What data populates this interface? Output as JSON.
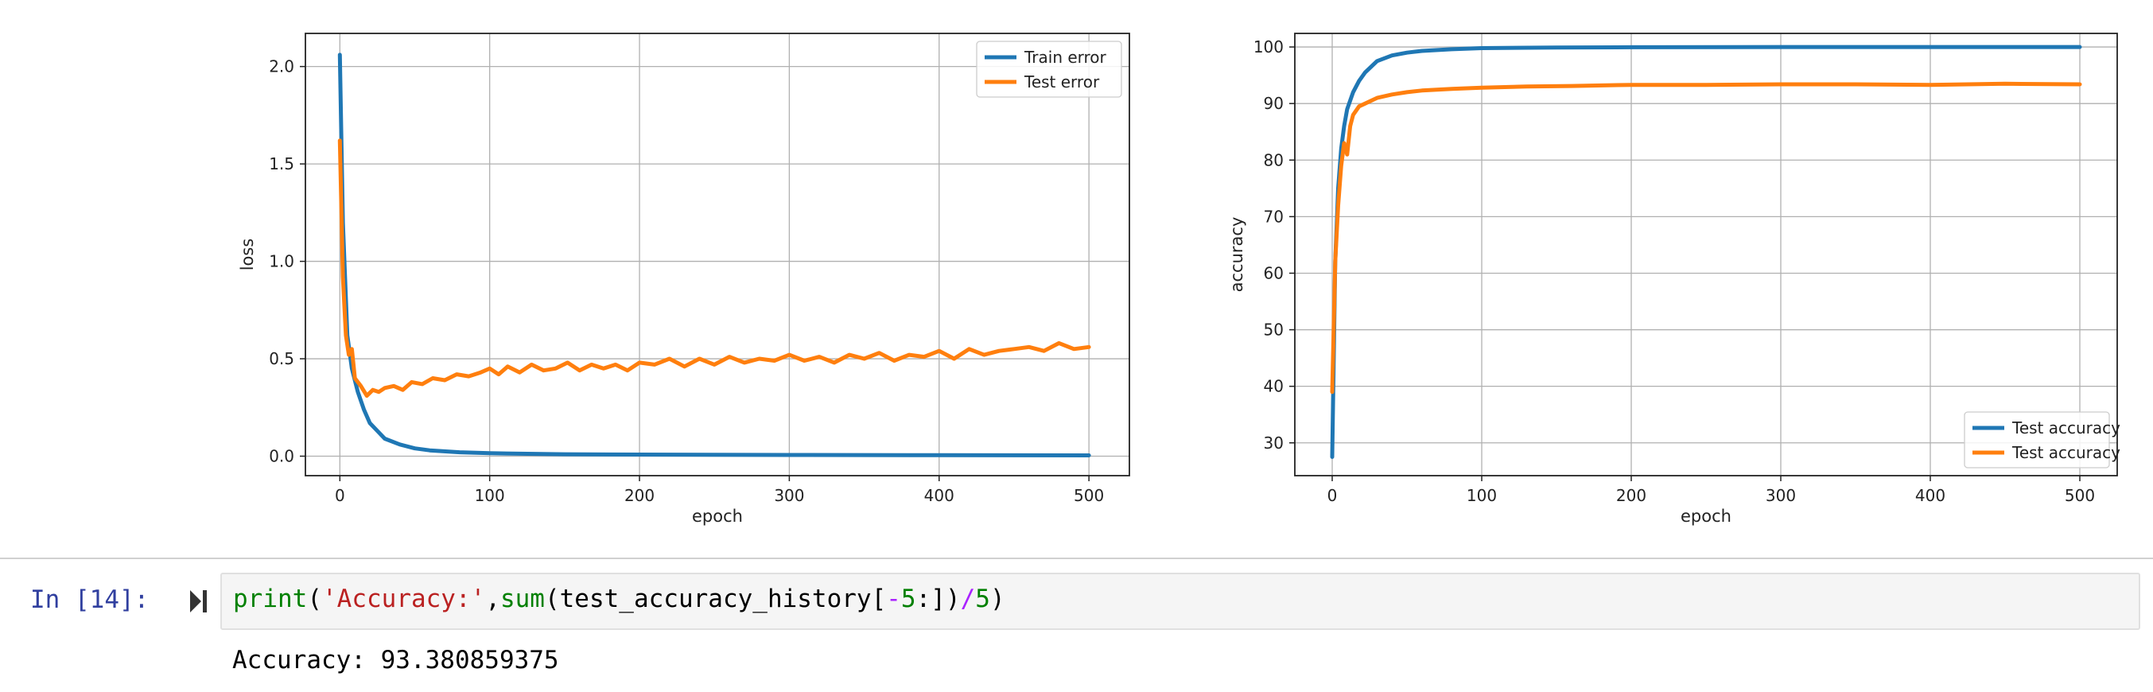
{
  "colors": {
    "series_blue": "#1f77b4",
    "series_orange": "#ff7f0e",
    "grid": "#b0b0b0",
    "prompt": "#303f9f"
  },
  "chart_data": [
    {
      "type": "line",
      "xlabel": "epoch",
      "ylabel": "loss",
      "xlim": [
        -23,
        527
      ],
      "ylim": [
        -0.1,
        2.17
      ],
      "xticks": [
        0,
        100,
        200,
        300,
        400,
        500
      ],
      "yticks": [
        0.0,
        0.5,
        1.0,
        1.5,
        2.0
      ],
      "xtick_labels": [
        "0",
        "100",
        "200",
        "300",
        "400",
        "500"
      ],
      "ytick_labels": [
        "0.0",
        "0.5",
        "1.0",
        "1.5",
        "2.0"
      ],
      "grid": true,
      "legend": "top-right",
      "series": [
        {
          "name": "Train error",
          "color": "#1f77b4",
          "x": [
            0,
            2,
            5,
            8,
            12,
            16,
            20,
            25,
            30,
            40,
            50,
            60,
            80,
            100,
            150,
            200,
            300,
            400,
            500
          ],
          "values": [
            2.06,
            1.2,
            0.62,
            0.45,
            0.33,
            0.24,
            0.17,
            0.13,
            0.09,
            0.06,
            0.04,
            0.03,
            0.02,
            0.015,
            0.01,
            0.008,
            0.006,
            0.005,
            0.004
          ]
        },
        {
          "name": "Test error",
          "color": "#ff7f0e",
          "x": [
            0,
            2,
            4,
            6,
            8,
            10,
            14,
            18,
            22,
            26,
            30,
            36,
            42,
            48,
            55,
            62,
            70,
            78,
            86,
            94,
            100,
            106,
            112,
            120,
            128,
            136,
            144,
            152,
            160,
            168,
            176,
            184,
            192,
            200,
            210,
            220,
            230,
            240,
            250,
            260,
            270,
            280,
            290,
            300,
            310,
            320,
            330,
            340,
            350,
            360,
            370,
            380,
            390,
            400,
            410,
            420,
            430,
            440,
            450,
            460,
            470,
            480,
            490,
            500
          ],
          "values": [
            1.62,
            0.92,
            0.62,
            0.52,
            0.55,
            0.4,
            0.36,
            0.31,
            0.34,
            0.33,
            0.35,
            0.36,
            0.34,
            0.38,
            0.37,
            0.4,
            0.39,
            0.42,
            0.41,
            0.43,
            0.45,
            0.42,
            0.46,
            0.43,
            0.47,
            0.44,
            0.45,
            0.48,
            0.44,
            0.47,
            0.45,
            0.47,
            0.44,
            0.48,
            0.47,
            0.5,
            0.46,
            0.5,
            0.47,
            0.51,
            0.48,
            0.5,
            0.49,
            0.52,
            0.49,
            0.51,
            0.48,
            0.52,
            0.5,
            0.53,
            0.49,
            0.52,
            0.51,
            0.54,
            0.5,
            0.55,
            0.52,
            0.54,
            0.55,
            0.56,
            0.54,
            0.58,
            0.55,
            0.56
          ]
        }
      ]
    },
    {
      "type": "line",
      "xlabel": "epoch",
      "ylabel": "accuracy",
      "xlim": [
        -25,
        525
      ],
      "ylim": [
        24.2,
        102.4
      ],
      "xticks": [
        0,
        100,
        200,
        300,
        400,
        500
      ],
      "yticks": [
        30,
        40,
        50,
        60,
        70,
        80,
        90,
        100
      ],
      "xtick_labels": [
        "0",
        "100",
        "200",
        "300",
        "400",
        "500"
      ],
      "ytick_labels": [
        "30",
        "40",
        "50",
        "60",
        "70",
        "80",
        "90",
        "100"
      ],
      "grid": true,
      "legend": "bottom-right",
      "series": [
        {
          "name": "Test accuracy",
          "color": "#1f77b4",
          "x": [
            0,
            2,
            4,
            6,
            8,
            10,
            14,
            18,
            22,
            26,
            30,
            40,
            50,
            60,
            80,
            100,
            150,
            200,
            300,
            400,
            500
          ],
          "values": [
            27.5,
            62,
            75,
            82,
            86,
            89,
            92,
            94,
            95.5,
            96.5,
            97.5,
            98.5,
            99,
            99.3,
            99.6,
            99.8,
            99.9,
            99.95,
            100,
            100,
            100
          ]
        },
        {
          "name": "Test accuracy",
          "color": "#ff7f0e",
          "x": [
            0,
            2,
            4,
            6,
            8,
            10,
            12,
            14,
            18,
            22,
            26,
            30,
            40,
            50,
            60,
            80,
            100,
            130,
            160,
            200,
            250,
            300,
            350,
            400,
            450,
            500
          ],
          "values": [
            39,
            62,
            72,
            79,
            83,
            81,
            86,
            88,
            89.5,
            90,
            90.5,
            91,
            91.6,
            92,
            92.3,
            92.6,
            92.8,
            93,
            93.1,
            93.3,
            93.3,
            93.4,
            93.4,
            93.3,
            93.5,
            93.4
          ]
        }
      ]
    }
  ],
  "notebook": {
    "prompt": "In [14]:",
    "code_tokens": [
      {
        "text": "print",
        "cls": "tok-builtin"
      },
      {
        "text": "(",
        "cls": "tok-plain"
      },
      {
        "text": "'Accuracy:'",
        "cls": "tok-string"
      },
      {
        "text": ",",
        "cls": "tok-plain"
      },
      {
        "text": "sum",
        "cls": "tok-builtin"
      },
      {
        "text": "(test_accuracy_history[",
        "cls": "tok-plain"
      },
      {
        "text": "-",
        "cls": "tok-op"
      },
      {
        "text": "5",
        "cls": "tok-num"
      },
      {
        "text": ":])",
        "cls": "tok-plain"
      },
      {
        "text": "/",
        "cls": "tok-op"
      },
      {
        "text": "5",
        "cls": "tok-num"
      },
      {
        "text": ")",
        "cls": "tok-plain"
      }
    ],
    "output": "Accuracy: 93.380859375"
  }
}
